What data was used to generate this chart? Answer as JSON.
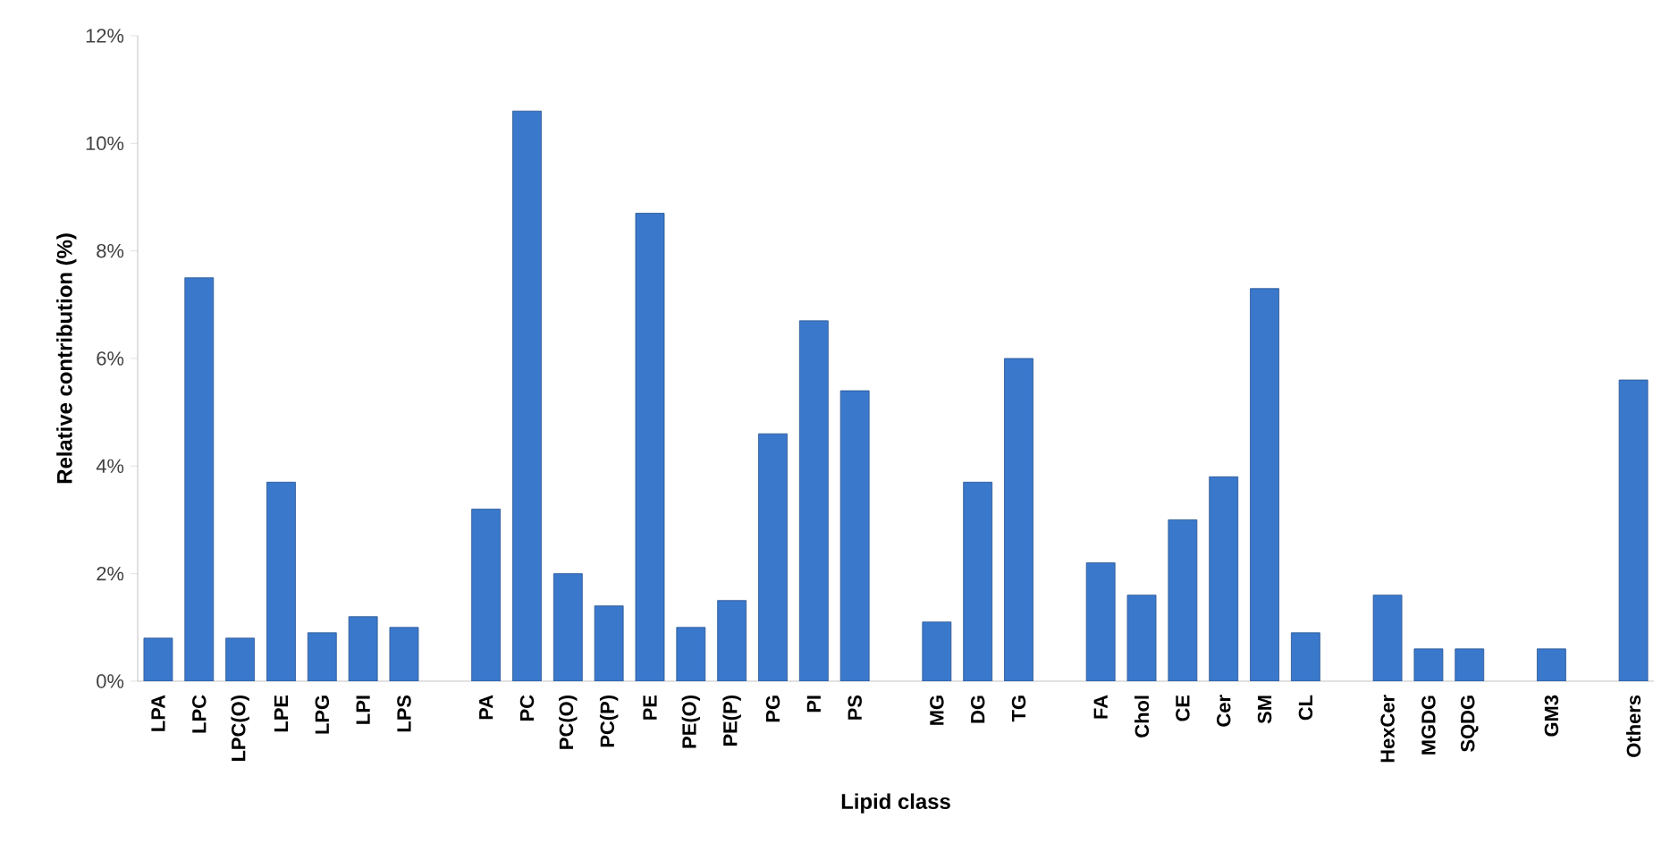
{
  "chart_data": {
    "type": "bar",
    "xlabel": "Lipid class",
    "ylabel": "Relative contribution (%)",
    "categories": [
      "LPA",
      "LPC",
      "LPC(O)",
      "LPE",
      "LPG",
      "LPI",
      "LPS",
      null,
      "PA",
      "PC",
      "PC(O)",
      "PC(P)",
      "PE",
      "PE(O)",
      "PE(P)",
      "PG",
      "PI",
      "PS",
      null,
      "MG",
      "DG",
      "TG",
      null,
      "FA",
      "Chol",
      "CE",
      "Cer",
      "SM",
      "CL",
      null,
      "HexCer",
      "MGDG",
      "SQDG",
      null,
      "GM3",
      null,
      "Others"
    ],
    "values": [
      0.8,
      7.5,
      0.8,
      3.7,
      0.9,
      1.2,
      1.0,
      null,
      3.2,
      10.6,
      2.0,
      1.4,
      8.7,
      1.0,
      1.5,
      4.6,
      6.7,
      5.4,
      null,
      1.1,
      3.7,
      6.0,
      null,
      2.2,
      1.6,
      3.0,
      3.8,
      7.3,
      0.9,
      null,
      1.6,
      0.6,
      0.6,
      null,
      0.6,
      null,
      5.6
    ],
    "color": "#3a78cc",
    "ylim": [
      0,
      12
    ],
    "yticks": [
      {
        "value": 0,
        "label": "0%"
      },
      {
        "value": 2,
        "label": "2%"
      },
      {
        "value": 4,
        "label": "4%"
      },
      {
        "value": 6,
        "label": "6%"
      },
      {
        "value": 8,
        "label": "8%"
      },
      {
        "value": 10,
        "label": "10%"
      },
      {
        "value": 12,
        "label": "12%"
      }
    ],
    "grid": false
  }
}
